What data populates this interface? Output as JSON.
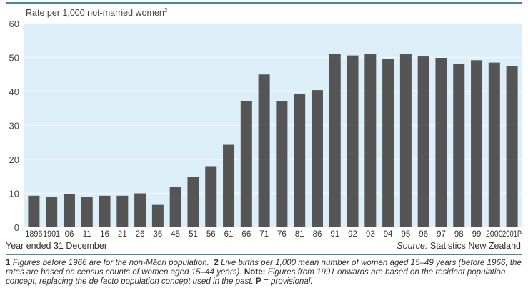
{
  "chart_data": {
    "type": "bar",
    "ylabel": "Rate per 1,000 not-married women",
    "ylabel_sup": "2",
    "xlabel": "Year ended 31 December",
    "ylim": [
      0,
      60
    ],
    "yticks": [
      0,
      10,
      20,
      30,
      40,
      50,
      60
    ],
    "grid": true,
    "categories": [
      "1896",
      "1901",
      "06",
      "11",
      "16",
      "21",
      "26",
      "36",
      "45",
      "51",
      "56",
      "61",
      "66",
      "71",
      "76",
      "81",
      "86",
      "91",
      "92",
      "93",
      "94",
      "95",
      "96",
      "97",
      "98",
      "99",
      "2000",
      "2001P"
    ],
    "values": [
      9.3,
      8.9,
      9.9,
      9.0,
      9.3,
      9.3,
      10.0,
      6.6,
      11.8,
      14.9,
      18.0,
      24.3,
      37.2,
      45.0,
      37.2,
      39.2,
      40.4,
      51.0,
      50.6,
      51.1,
      49.6,
      51.1,
      50.3,
      49.9,
      48.1,
      49.2,
      48.5,
      47.4
    ],
    "colors": {
      "bar": "#555555",
      "plot_bg": "#dceef8",
      "grid": "#f2f8fc",
      "rule": "#4a8a98"
    }
  },
  "source": {
    "label": "Source:",
    "text": "Statistics New Zealand"
  },
  "footnotes": {
    "n1": "1",
    "t1": "Figures before 1966 are for the non-Māori population.",
    "n2": "2",
    "t2": "Live births per 1,000 mean number of women aged 15–49 years (before 1966, the rates are based on census counts of women aged 15–44 years).",
    "note_label": "Note:",
    "note": "Figures from 1991 onwards are based on the resident population concept, replacing the de facto population concept used in the past.",
    "p_label": "P",
    "p_text": "= provisional."
  }
}
